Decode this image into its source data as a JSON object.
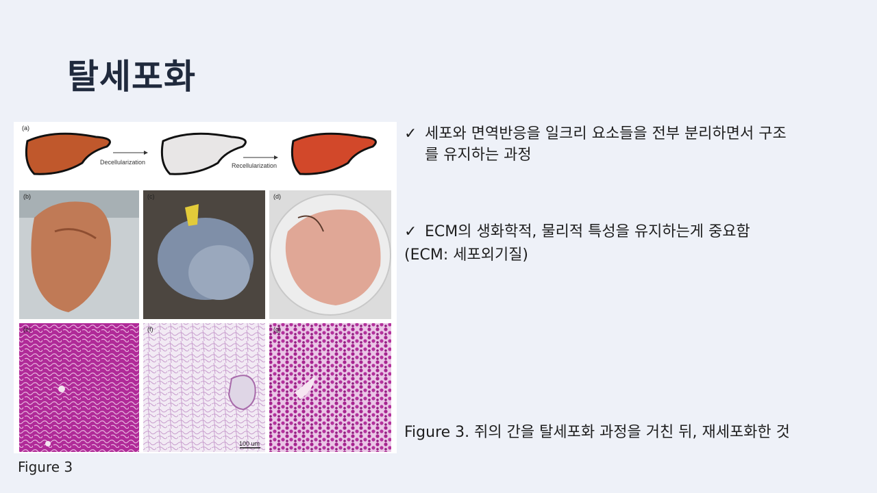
{
  "slide": {
    "title": "탈세포화",
    "figure_caption_left": "Figure 3",
    "bullets": [
      {
        "check": "✓",
        "line1": "세포와 면역반응을 일크리 요소들을 전부 분리하면서 구조",
        "line2": "를 유지하는 과정"
      },
      {
        "check": "✓",
        "line1": "ECM의 생화학적, 물리적 특성을 유지하는게 중요함"
      }
    ],
    "sub_note": "(ECM: 세포외기질)",
    "figure_caption_right": "Figure 3. 쥐의 간을 탈세포화 과정을 거친 뒤, 재세포화한 것"
  },
  "figure": {
    "panel_labels": [
      "(a)",
      "(b)",
      "(c)",
      "(d)",
      "(e)",
      "(f)",
      "(g)"
    ],
    "arrow1": "Decellularization",
    "arrow2": "Recellularization",
    "scale_bar": "100 um",
    "colors": {
      "liver": "#c0582c",
      "decell": "#e8e6e6",
      "recell": "#d2482a",
      "stain": "#b2279a"
    }
  }
}
